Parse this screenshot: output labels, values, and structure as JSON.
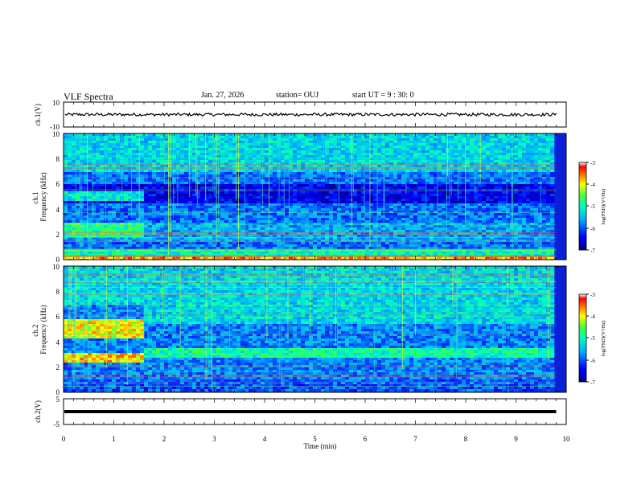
{
  "header": {
    "title": "VLF Spectra",
    "date": "Jan. 27, 2026",
    "station": "station= OUJ",
    "start_ut": "start UT =  9 : 30: 0"
  },
  "chart_data": [
    {
      "type": "line",
      "panel": "waveform-ch1",
      "ylabel": "ch.1(V)",
      "ylim": [
        -10,
        10
      ],
      "y_tick_labels": [
        "10",
        "-10"
      ],
      "x": [
        0,
        1,
        2,
        3,
        4,
        5,
        6,
        7,
        8,
        9,
        9.8
      ],
      "values": [
        0,
        0,
        0,
        0,
        0,
        0,
        0,
        0,
        0,
        0,
        0
      ],
      "xlim": [
        0,
        10
      ]
    },
    {
      "type": "heatmap",
      "panel": "spectrogram-ch1",
      "ylabel": "ch.1\nFrequency (kHz)",
      "ylim": [
        0,
        10
      ],
      "y_tick_labels": [
        "0",
        "2",
        "4",
        "6",
        "8",
        "10"
      ],
      "xlim": [
        0,
        10
      ],
      "colorbar": {
        "label": "log(PSD)(V²/Hz)",
        "range": [
          -7,
          -3
        ],
        "tick_labels": [
          "-3",
          "-4",
          "-5",
          "-6",
          "-7"
        ]
      }
    },
    {
      "type": "heatmap",
      "panel": "spectrogram-ch2",
      "ylabel": "ch.2\nFrequency (kHz)",
      "ylim": [
        0,
        10
      ],
      "y_tick_labels": [
        "0",
        "2",
        "4",
        "6",
        "8",
        "10"
      ],
      "xlim": [
        0,
        10
      ],
      "colorbar": {
        "label": "log(PSD)(V²/Hz)",
        "range": [
          -7,
          -3
        ],
        "tick_labels": [
          "-3",
          "-4",
          "-5",
          "-6",
          "-7"
        ]
      }
    },
    {
      "type": "line",
      "panel": "waveform-ch2",
      "ylabel": "ch.2(V)",
      "ylim": [
        -5,
        5
      ],
      "y_tick_labels": [
        "5",
        "-5"
      ],
      "x": [
        0,
        9.8
      ],
      "values": [
        0,
        0
      ],
      "xlim": [
        0,
        10
      ]
    }
  ],
  "x_axis": {
    "label": "Time (min)",
    "tick_labels": [
      "0",
      "1",
      "2",
      "3",
      "4",
      "5",
      "6",
      "7",
      "8",
      "9",
      "10"
    ]
  },
  "colors": {
    "colormap": [
      "#00008b",
      "#0000ff",
      "#00a0ff",
      "#00ffd0",
      "#40ff40",
      "#ffff00",
      "#ff8000",
      "#ff0000",
      "#ffffff"
    ]
  }
}
